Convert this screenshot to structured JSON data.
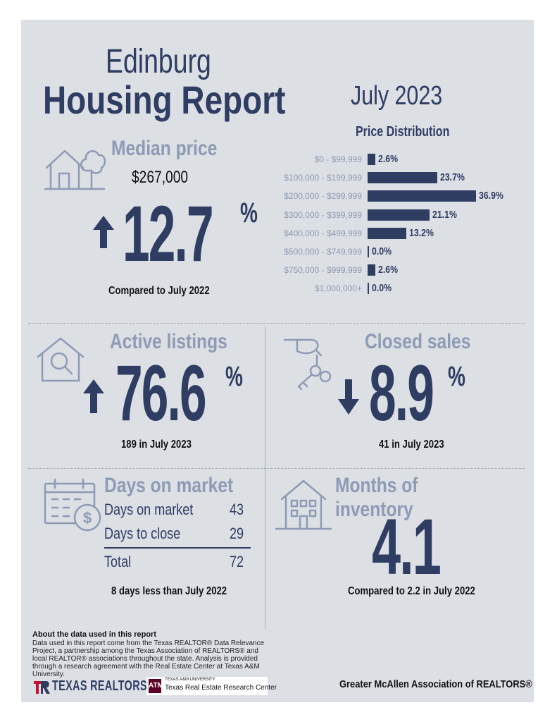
{
  "header": {
    "city": "Edinburg",
    "report": "Housing Report",
    "month": "July 2023"
  },
  "median_price": {
    "heading": "Median price",
    "value": "$267,000",
    "change": "12.7",
    "pct_sign": "%",
    "direction": "up",
    "caption": "Compared to July 2022"
  },
  "price_distribution": {
    "title": "Price Distribution",
    "chart_data": {
      "type": "bar",
      "categories": [
        "$0 - $99,999",
        "$100,000 - $199,999",
        "$200,000 - $299,999",
        "$300,000 - $399,999",
        "$400,000 - $499,999",
        "$500,000 - $749,999",
        "$750,000 - $999,999",
        "$1,000,000+"
      ],
      "values": [
        2.6,
        23.7,
        36.9,
        21.1,
        13.2,
        0.0,
        2.6,
        0.0
      ],
      "value_labels": [
        "2.6%",
        "23.7%",
        "36.9%",
        "21.1%",
        "13.2%",
        "0.0%",
        "2.6%",
        "0.0%"
      ],
      "orientation": "horizontal",
      "bar_color": "#2f3d63"
    }
  },
  "active_listings": {
    "heading": "Active listings",
    "change": "76.6",
    "pct_sign": "%",
    "direction": "up",
    "caption": "189 in July 2023"
  },
  "closed_sales": {
    "heading": "Closed sales",
    "change": "8.9",
    "pct_sign": "%",
    "direction": "down",
    "caption": "41 in July 2023"
  },
  "days_on_market": {
    "heading": "Days on market",
    "rows": [
      {
        "label": "Days on market",
        "value": "43"
      },
      {
        "label": "Days to close",
        "value": "29"
      }
    ],
    "total_label": "Total",
    "total_value": "72",
    "caption": "8 days less than July 2022"
  },
  "months_inventory": {
    "heading": "Months of inventory",
    "value": "4.1",
    "caption": "Compared to 2.2 in July 2022"
  },
  "footer": {
    "about_heading": "About the data used in this report",
    "about_text": "Data used in this report come from the Texas REALTOR® Data Relevance Project, a partnership among the Texas Association of REALTORS® and local REALTOR® associations throughout the state. Analysis is provided through a research agreement with the Real Estate Center at Texas A&M University.",
    "texas_realtors": "TEXAS REALTORS",
    "tamu_small": "TEXAS A&M UNIVERSITY",
    "tamu_center": "Texas Real Estate Research Center",
    "association": "Greater McAllen Association of REALTORS®"
  },
  "colors": {
    "navy": "#2f3d63",
    "gray": "#8e9bb4",
    "panel": "#dcdfe4",
    "logo_red": "#c8102e"
  }
}
